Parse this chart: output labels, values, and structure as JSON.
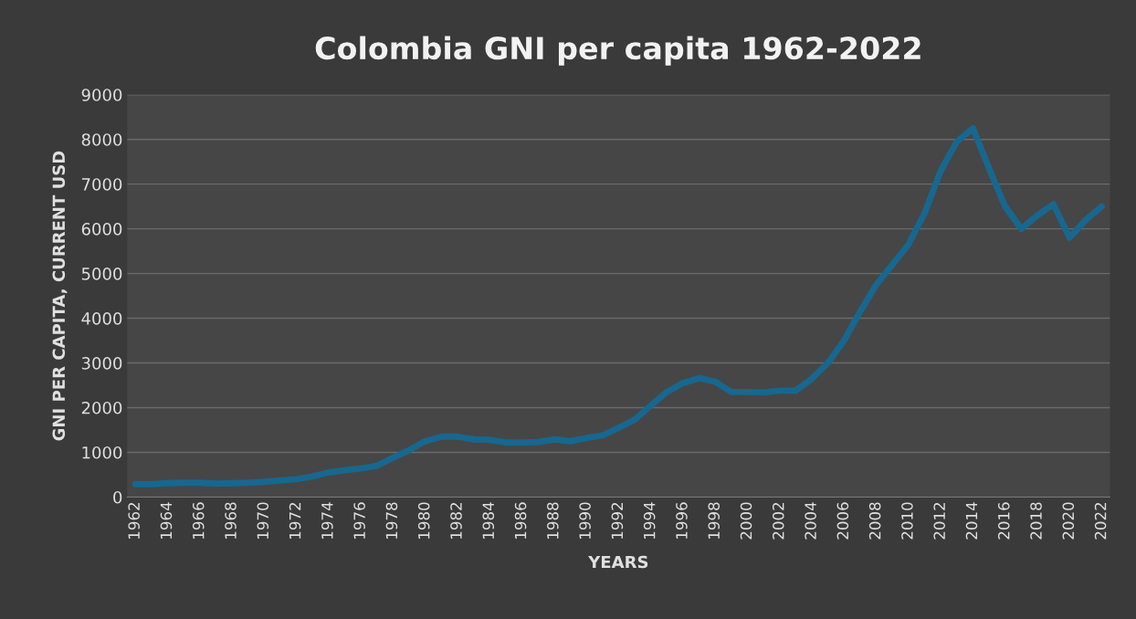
{
  "chart_data": {
    "type": "line",
    "title": "Colombia GNI per capita 1962-2022",
    "xlabel": "YEARS",
    "ylabel": "GNI PER CAPITA, CURRENT USD",
    "categories": [
      "1962",
      null,
      "1964",
      null,
      "1966",
      null,
      "1968",
      null,
      "1970",
      null,
      "1972",
      null,
      "1974",
      null,
      "1976",
      null,
      "1978",
      null,
      "1980",
      null,
      "1982",
      null,
      "1984",
      null,
      "1986",
      null,
      "1988",
      null,
      "1990",
      null,
      "1992",
      null,
      "1994",
      null,
      "1996",
      null,
      "1998",
      null,
      "2000",
      null,
      "2002",
      null,
      "2004",
      null,
      "2006",
      null,
      "2008",
      null,
      "2010",
      null,
      "2012",
      null,
      "2014",
      null,
      "2016",
      null,
      "2018",
      null,
      "2020",
      null,
      "2022"
    ],
    "series": [
      {
        "color": "#17678f",
        "values": [
          290,
          290,
          310,
          320,
          320,
          300,
          310,
          320,
          340,
          370,
          400,
          460,
          550,
          600,
          640,
          700,
          880,
          1050,
          1250,
          1350,
          1350,
          1290,
          1280,
          1220,
          1220,
          1230,
          1290,
          1250,
          1320,
          1380,
          1550,
          1730,
          2050,
          2350,
          2550,
          2660,
          2580,
          2350,
          2350,
          2340,
          2380,
          2380,
          2650,
          3000,
          3500,
          4150,
          4750,
          5200,
          5650,
          6350,
          7300,
          7950,
          8250,
          7350,
          6500,
          6000,
          6300,
          6550,
          5800,
          6200,
          6500
        ]
      }
    ],
    "ylim": [
      0,
      9000
    ],
    "yticks": [
      0,
      1000,
      2000,
      3000,
      4000,
      5000,
      6000,
      7000,
      8000,
      9000
    ],
    "grid": "y",
    "legend": false,
    "marker": "none",
    "line_style": "solid"
  }
}
